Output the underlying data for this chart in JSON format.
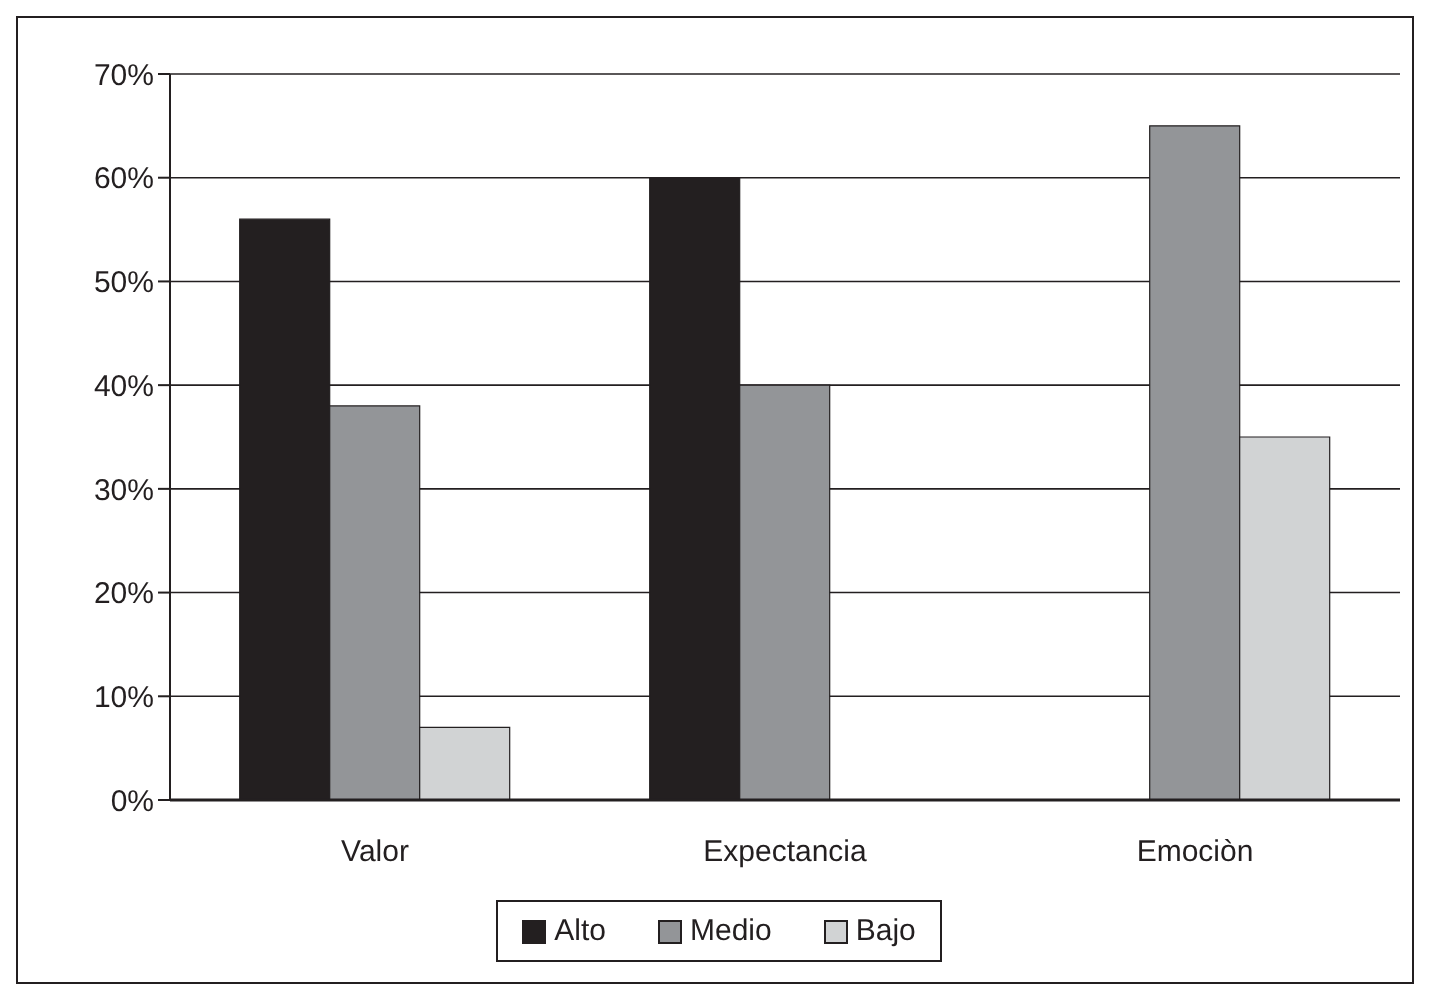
{
  "chart_data": {
    "type": "bar",
    "categories": [
      "Valor",
      "Expectancia",
      "Emociòn"
    ],
    "series": [
      {
        "name": "Alto",
        "color": "#231f20",
        "values": [
          56,
          60,
          0
        ]
      },
      {
        "name": "Medio",
        "color": "#939598",
        "values": [
          38,
          40,
          65
        ]
      },
      {
        "name": "Bajo",
        "color": "#d1d3d4",
        "values": [
          7,
          0,
          35
        ]
      }
    ],
    "ylim": [
      0,
      70
    ],
    "yticks": [
      {
        "value": 0,
        "label": "0%"
      },
      {
        "value": 10,
        "label": "10%"
      },
      {
        "value": 20,
        "label": "20%"
      },
      {
        "value": 30,
        "label": "30%"
      },
      {
        "value": 40,
        "label": "40%"
      },
      {
        "value": 50,
        "label": "50%"
      },
      {
        "value": 60,
        "label": "60%"
      },
      {
        "value": 70,
        "label": "70%"
      }
    ],
    "grid": "y",
    "legend": "bottom"
  }
}
